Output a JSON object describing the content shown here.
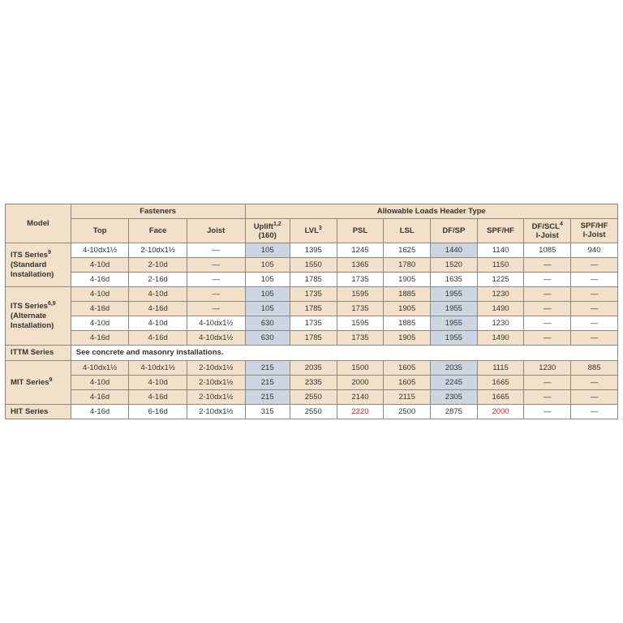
{
  "colors": {
    "header_bg": "#f2e0c9",
    "band_bg": "#f2e0c9",
    "plain_bg": "#ffffff",
    "shade_bg": "#cdd6e0",
    "red_text": "#c8281e",
    "border": "#888888"
  },
  "headers": {
    "model": "Model",
    "fasteners": "Fasteners",
    "allow": "Allowable Loads Header Type",
    "top": "Top",
    "face": "Face",
    "joist": "Joist",
    "uplift": "Uplift",
    "uplift_sup": "1,2",
    "uplift_sub": "(160)",
    "lvl": "LVL",
    "lvl_sup": "3",
    "psl": "PSL",
    "lsl": "LSL",
    "dfsp": "DF/SP",
    "spfhf": "SPF/HF",
    "dfscl": "DF/SCL",
    "dfscl_sup": "4",
    "dfscl2": "I-Joist",
    "spfhf_i": "SPF/HF",
    "spfhf_i2": "I-Joist"
  },
  "models": {
    "its_std": "ITS Series",
    "its_std_sup": "9",
    "its_std2": "(Standard",
    "its_std3": "Installation)",
    "its_alt": "ITS Series",
    "its_alt_sup": "6,9",
    "its_alt2": "(Alternate",
    "its_alt3": "Installation)",
    "ittm": "ITTM Series",
    "ittm_note": "See concrete and masonry installations.",
    "mit": "MIT Series",
    "mit_sup": "9",
    "hit": "HIT Series"
  },
  "r": {
    "its1": {
      "top": "4-10dx1½",
      "face": "2-10dx1½",
      "joist": "—",
      "up": "105",
      "lvl": "1395",
      "psl": "1245",
      "lsl": "1625",
      "df": "1440",
      "spf": "1140",
      "dj": "1085",
      "sj": "940"
    },
    "its2": {
      "top": "4-10d",
      "face": "2-10d",
      "joist": "—",
      "up": "105",
      "lvl": "1550",
      "psl": "1365",
      "lsl": "1780",
      "df": "1520",
      "spf": "1150",
      "dj": "—",
      "sj": "—"
    },
    "its3": {
      "top": "4-16d",
      "face": "2-16d",
      "joist": "—",
      "up": "105",
      "lvl": "1785",
      "psl": "1735",
      "lsl": "1905",
      "df": "1635",
      "spf": "1225",
      "dj": "—",
      "sj": "—"
    },
    "ita1": {
      "top": "4-10d",
      "face": "4-10d",
      "joist": "—",
      "up": "105",
      "lvl": "1735",
      "psl": "1595",
      "lsl": "1885",
      "df": "1955",
      "spf": "1230",
      "dj": "—",
      "sj": "—"
    },
    "ita2": {
      "top": "4-16d",
      "face": "4-16d",
      "joist": "—",
      "up": "105",
      "lvl": "1785",
      "psl": "1735",
      "lsl": "1905",
      "df": "1955",
      "spf": "1490",
      "dj": "—",
      "sj": "—"
    },
    "ita3": {
      "top": "4-10d",
      "face": "4-10d",
      "joist": "4-10dx1½",
      "up": "630",
      "lvl": "1735",
      "psl": "1595",
      "lsl": "1885",
      "df": "1955",
      "spf": "1230",
      "dj": "—",
      "sj": "—"
    },
    "ita4": {
      "top": "4-16d",
      "face": "4-16d",
      "joist": "4-10dx1½",
      "up": "630",
      "lvl": "1785",
      "psl": "1735",
      "lsl": "1905",
      "df": "1955",
      "spf": "1490",
      "dj": "—",
      "sj": "—"
    },
    "mit1": {
      "top": "4-10dx1½",
      "face": "4-10dx1½",
      "joist": "2-10dx1½",
      "up": "215",
      "lvl": "2035",
      "psl": "1500",
      "lsl": "1605",
      "df": "2035",
      "spf": "1115",
      "dj": "1230",
      "sj": "885"
    },
    "mit2": {
      "top": "4-10d",
      "face": "4-10d",
      "joist": "2-10dx1½",
      "up": "215",
      "lvl": "2335",
      "psl": "2000",
      "lsl": "1605",
      "df": "2245",
      "spf": "1665",
      "dj": "—",
      "sj": "—"
    },
    "mit3": {
      "top": "4-16d",
      "face": "4-16d",
      "joist": "2-10dx1½",
      "up": "215",
      "lvl": "2550",
      "psl": "2140",
      "lsl": "2115",
      "df": "2305",
      "spf": "1665",
      "dj": "—",
      "sj": "—"
    },
    "hit1": {
      "top": "4-16d",
      "face": "6-16d",
      "joist": "2-10dx1½",
      "up": "315",
      "lvl": "2550",
      "psl": "2220",
      "lsl": "2500",
      "df": "2875",
      "spf": "2000",
      "dj": "—",
      "sj": "—"
    }
  }
}
